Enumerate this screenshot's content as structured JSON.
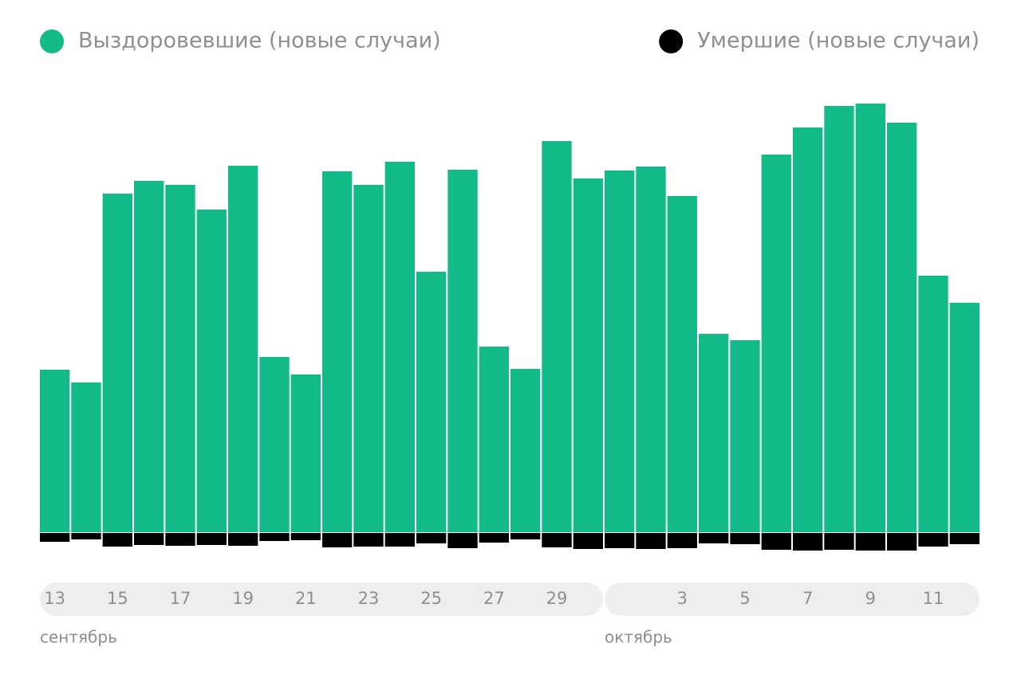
{
  "chart_data": {
    "type": "bar",
    "series": [
      {
        "name": "Выздоровевшие (новые случаи)",
        "color": "#12bb87",
        "values": [
          204,
          188,
          425,
          441,
          436,
          405,
          460,
          220,
          198,
          453,
          436,
          465,
          327,
          455,
          233,
          205,
          491,
          444,
          454,
          459,
          422,
          249,
          241,
          474,
          508,
          535,
          538,
          514,
          322,
          288
        ]
      },
      {
        "name": "Умершие (новые случаи)",
        "color": "#000000",
        "values": [
          11,
          8,
          17,
          15,
          16,
          15,
          16,
          10,
          9,
          18,
          17,
          17,
          13,
          19,
          12,
          8,
          18,
          20,
          19,
          20,
          19,
          13,
          14,
          21,
          22,
          21,
          22,
          22,
          17,
          14
        ]
      }
    ],
    "groups": [
      {
        "name": "сентябрь",
        "categories": [
          "13",
          null,
          "15",
          null,
          "17",
          null,
          "19",
          null,
          "21",
          null,
          "23",
          null,
          "25",
          null,
          "27",
          null,
          "29",
          null
        ]
      },
      {
        "name": "октябрь",
        "categories": [
          null,
          null,
          "3",
          null,
          "5",
          null,
          "7",
          null,
          "9",
          null,
          "11",
          null
        ]
      }
    ]
  }
}
